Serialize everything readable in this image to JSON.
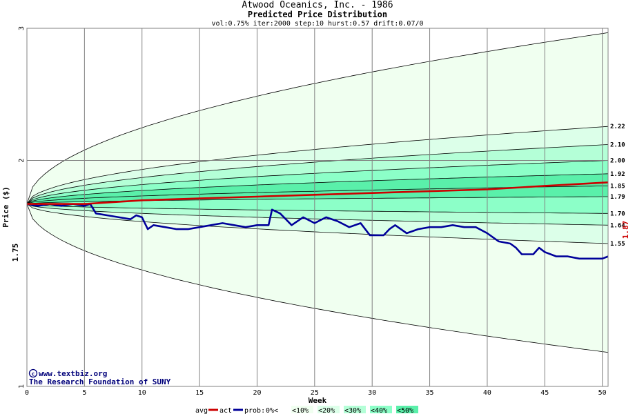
{
  "header": {
    "title": "Atwood Oceanics, Inc. - 1986",
    "subtitle": "Predicted Price Distribution",
    "params": "vol:0.75% iter:2000 step:10 hurst:0.57 drift:0.07/0"
  },
  "credits": {
    "site": "www.textbiz.org",
    "org": "The Research Foundation of SUNY"
  },
  "colors": {
    "band10": "#f0fff0",
    "band20": "#dcffe9",
    "band30": "#b4ffd7",
    "band40": "#8cffc8",
    "band50": "#5af0aa",
    "avg": "#cc0000",
    "act": "#00009a",
    "grid": "#808080",
    "contour": "#000000"
  },
  "chart_data": {
    "type": "line",
    "xlabel": "Week",
    "ylabel": "Price ($)",
    "xlim": [
      0,
      50.5
    ],
    "ylim": [
      1,
      3
    ],
    "y_scale": "log",
    "x_ticks": [
      0,
      5,
      10,
      15,
      20,
      25,
      30,
      35,
      40,
      45,
      50
    ],
    "y_ticks": [
      1,
      2,
      3
    ],
    "start_price_label": "1.75",
    "current_price_label": "1.87",
    "start_price": 1.75,
    "band_end_labels": [
      "2.22",
      "2.10",
      "2.00",
      "1.92",
      "1.85",
      "1.79",
      "1.70",
      "1.64",
      "1.55"
    ],
    "percentile_curves": [
      {
        "end_value": 2.96
      },
      {
        "end_value": 2.22
      },
      {
        "end_value": 2.1
      },
      {
        "end_value": 2.0
      },
      {
        "end_value": 1.92
      },
      {
        "end_value": 1.85
      },
      {
        "end_value": 1.79
      },
      {
        "end_value": 1.7
      },
      {
        "end_value": 1.64
      },
      {
        "end_value": 1.55
      },
      {
        "end_value": 1.11
      }
    ],
    "avg_series": {
      "name": "avg",
      "points": [
        [
          0,
          1.75
        ],
        [
          5,
          1.75
        ],
        [
          10,
          1.77
        ],
        [
          15,
          1.78
        ],
        [
          20,
          1.79
        ],
        [
          25,
          1.8
        ],
        [
          30,
          1.81
        ],
        [
          35,
          1.82
        ],
        [
          40,
          1.83
        ],
        [
          45,
          1.85
        ],
        [
          50.5,
          1.87
        ]
      ]
    },
    "act_series": {
      "name": "act",
      "points": [
        [
          0,
          1.75
        ],
        [
          1,
          1.74
        ],
        [
          2,
          1.75
        ],
        [
          3,
          1.74
        ],
        [
          4,
          1.75
        ],
        [
          5,
          1.74
        ],
        [
          5.5,
          1.75
        ],
        [
          6,
          1.7
        ],
        [
          7,
          1.69
        ],
        [
          8,
          1.68
        ],
        [
          9,
          1.67
        ],
        [
          9.5,
          1.69
        ],
        [
          10,
          1.68
        ],
        [
          10.5,
          1.62
        ],
        [
          11,
          1.64
        ],
        [
          12,
          1.63
        ],
        [
          13,
          1.62
        ],
        [
          14,
          1.62
        ],
        [
          15,
          1.63
        ],
        [
          16,
          1.64
        ],
        [
          17,
          1.65
        ],
        [
          18,
          1.64
        ],
        [
          19,
          1.63
        ],
        [
          20,
          1.64
        ],
        [
          21,
          1.64
        ],
        [
          21.3,
          1.72
        ],
        [
          22,
          1.7
        ],
        [
          22.5,
          1.67
        ],
        [
          23,
          1.64
        ],
        [
          24,
          1.68
        ],
        [
          25,
          1.65
        ],
        [
          26,
          1.68
        ],
        [
          27,
          1.66
        ],
        [
          28,
          1.63
        ],
        [
          29,
          1.65
        ],
        [
          29.8,
          1.59
        ],
        [
          31,
          1.59
        ],
        [
          31.5,
          1.62
        ],
        [
          32,
          1.64
        ],
        [
          33,
          1.6
        ],
        [
          34,
          1.62
        ],
        [
          35,
          1.63
        ],
        [
          36,
          1.63
        ],
        [
          37,
          1.64
        ],
        [
          38,
          1.63
        ],
        [
          39,
          1.63
        ],
        [
          40,
          1.6
        ],
        [
          41,
          1.56
        ],
        [
          42,
          1.55
        ],
        [
          42.5,
          1.53
        ],
        [
          43,
          1.5
        ],
        [
          44,
          1.5
        ],
        [
          44.5,
          1.53
        ],
        [
          45,
          1.51
        ],
        [
          46,
          1.49
        ],
        [
          47,
          1.49
        ],
        [
          48,
          1.48
        ],
        [
          49,
          1.48
        ],
        [
          50,
          1.48
        ],
        [
          50.5,
          1.49
        ]
      ]
    },
    "legend": {
      "avg_label": "avg",
      "act_label": "act",
      "prob_label": "prob:",
      "items": [
        "0%<",
        "<10%",
        "<20%",
        "<30%",
        "<40%",
        "<50%"
      ]
    }
  }
}
